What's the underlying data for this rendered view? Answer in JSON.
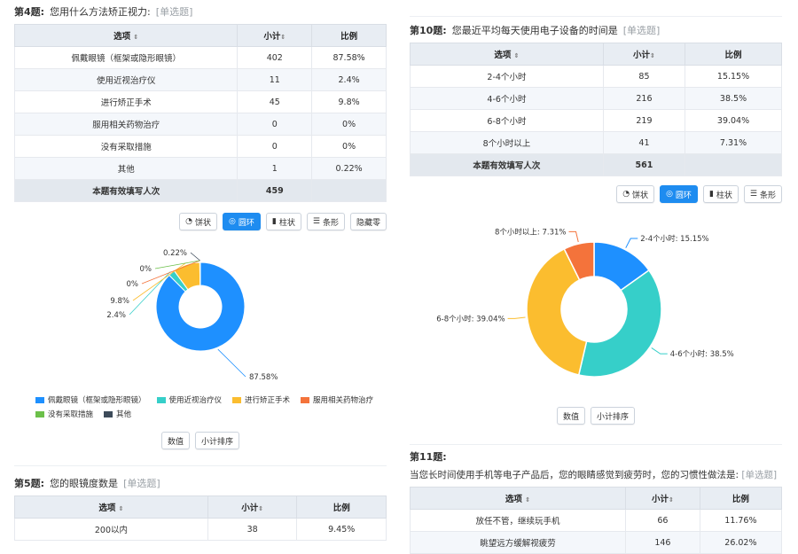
{
  "colors": {
    "blue": "#1e90ff",
    "teal": "#36cfc9",
    "yellow": "#fbbd2f",
    "orange": "#f4733b",
    "green": "#6cc04a",
    "slate": "#3d4b5a",
    "accent": "#1e8cf0"
  },
  "q4": {
    "num": "第4题:",
    "title": "您用什么方法矫正视力:",
    "type": "[单选题]",
    "headers": [
      "选项",
      "小计",
      "比例"
    ],
    "rows": [
      {
        "option": "佩戴眼镜（框架或隐形眼镜）",
        "count": "402",
        "pct": "87.58%"
      },
      {
        "option": "使用近视治疗仪",
        "count": "11",
        "pct": "2.4%"
      },
      {
        "option": "进行矫正手术",
        "count": "45",
        "pct": "9.8%"
      },
      {
        "option": "服用相关药物治疗",
        "count": "0",
        "pct": "0%"
      },
      {
        "option": "没有采取措施",
        "count": "0",
        "pct": "0%"
      },
      {
        "option": "其他",
        "count": "1",
        "pct": "0.22%"
      }
    ],
    "total_label": "本题有效填写人次",
    "total": "459",
    "chart_buttons": [
      {
        "label": "饼状",
        "icon": "pie-icon"
      },
      {
        "label": "圆环",
        "icon": "donut-icon",
        "active": true
      },
      {
        "label": "柱状",
        "icon": "bar-icon"
      },
      {
        "label": "条形",
        "icon": "hbar-icon"
      },
      {
        "label": "隐藏零"
      }
    ],
    "bottom_buttons": [
      "数值",
      "小计排序"
    ]
  },
  "q10": {
    "num": "第10题:",
    "title": "您最近平均每天使用电子设备的时间是",
    "type": "[单选题]",
    "headers": [
      "选项",
      "小计",
      "比例"
    ],
    "rows": [
      {
        "option": "2-4个小时",
        "count": "85",
        "pct": "15.15%"
      },
      {
        "option": "4-6个小时",
        "count": "216",
        "pct": "38.5%"
      },
      {
        "option": "6-8个小时",
        "count": "219",
        "pct": "39.04%"
      },
      {
        "option": "8个小时以上",
        "count": "41",
        "pct": "7.31%"
      }
    ],
    "total_label": "本题有效填写人次",
    "total": "561",
    "chart_buttons": [
      {
        "label": "饼状",
        "icon": "pie-icon"
      },
      {
        "label": "圆环",
        "icon": "donut-icon",
        "active": true
      },
      {
        "label": "柱状",
        "icon": "bar-icon"
      },
      {
        "label": "条形",
        "icon": "hbar-icon"
      }
    ],
    "bottom_buttons": [
      "数值",
      "小计排序"
    ]
  },
  "q5": {
    "num": "第5题:",
    "title": "您的眼镜度数是",
    "type": "[单选题]",
    "headers": [
      "选项",
      "小计",
      "比例"
    ],
    "rows": [
      {
        "option": "200以内",
        "count": "38",
        "pct": "9.45%"
      }
    ]
  },
  "q11": {
    "num": "第11题:",
    "title": "当您长时间使用手机等电子产品后，您的眼睛感觉到疲劳时，您的习惯性做法是:",
    "type": "[单选题]",
    "headers": [
      "选项",
      "小计",
      "比例"
    ],
    "rows": [
      {
        "option": "放任不管，继续玩手机",
        "count": "66",
        "pct": "11.76%"
      },
      {
        "option": "眺望远方缓解视疲劳",
        "count": "146",
        "pct": "26.02%"
      }
    ]
  },
  "chart_data": [
    {
      "type": "pie",
      "style": "donut",
      "categories": [
        "佩戴眼镜（框架或隐形眼镜）",
        "使用近视治疗仪",
        "进行矫正手术",
        "服用相关药物治疗",
        "没有采取措施",
        "其他"
      ],
      "values": [
        87.58,
        2.4,
        9.8,
        0,
        0,
        0.22
      ],
      "labels": [
        "87.58%",
        "2.4%",
        "9.8%",
        "0%",
        "0%",
        "0.22%"
      ],
      "legend_position": "bottom"
    },
    {
      "type": "pie",
      "style": "donut",
      "categories": [
        "2-4个小时",
        "4-6个小时",
        "6-8个小时",
        "8个小时以上"
      ],
      "values": [
        15.15,
        38.5,
        39.04,
        7.31
      ],
      "labels": [
        "2-4个小时: 15.15%",
        "4-6个小时: 38.5%",
        "6-8个小时: 39.04%",
        "8个小时以上: 7.31%"
      ]
    }
  ]
}
